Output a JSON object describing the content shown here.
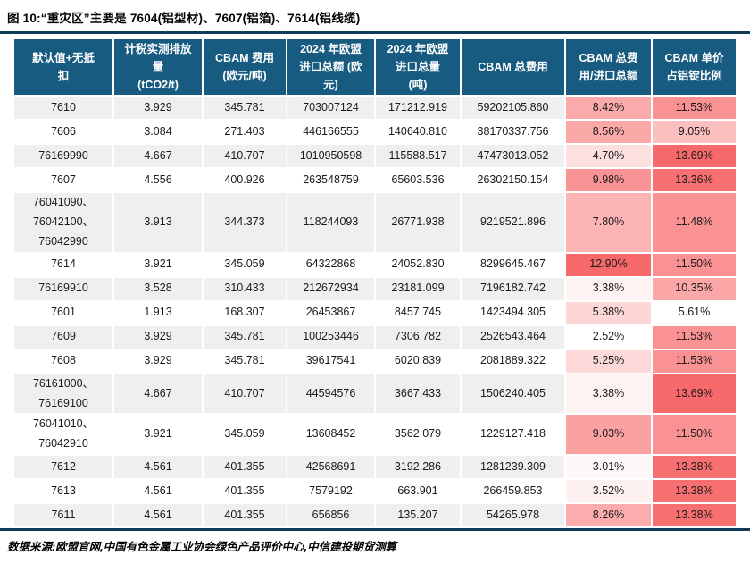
{
  "chart_data": {
    "type": "table",
    "title": "图 10:“重灾区”主要是 7604(铝型材)、7607(铝箔)、7614(铝线缆)",
    "columns": [
      "默认值+无抵\n扣",
      "计税实测排放\n量\n(tCO2/t)",
      "CBAM 费用\n(欧元/吨)",
      "2024 年欧盟\n进口总额 (欧\n元)",
      "2024 年欧盟\n进口总量\n(吨)",
      "CBAM 总费用",
      "CBAM 总费\n用/进口总额",
      "CBAM 单价\n占铝锭比例"
    ],
    "rows": [
      [
        "7610",
        "3.929",
        "345.781",
        "703007124",
        "171212.919",
        "59202105.860",
        "8.42%",
        "11.53%"
      ],
      [
        "7606",
        "3.084",
        "271.403",
        "446166555",
        "140640.810",
        "38170337.756",
        "8.56%",
        "9.05%"
      ],
      [
        "76169990",
        "4.667",
        "410.707",
        "1010950598",
        "115588.517",
        "47473013.052",
        "4.70%",
        "13.69%"
      ],
      [
        "7607",
        "4.556",
        "400.926",
        "263548759",
        "65603.536",
        "26302150.154",
        "9.98%",
        "13.36%"
      ],
      [
        "76041090、\n76042100、\n76042990",
        "3.913",
        "344.373",
        "118244093",
        "26771.938",
        "9219521.896",
        "7.80%",
        "11.48%"
      ],
      [
        "7614",
        "3.921",
        "345.059",
        "64322868",
        "24052.830",
        "8299645.467",
        "12.90%",
        "11.50%"
      ],
      [
        "76169910",
        "3.528",
        "310.433",
        "212672934",
        "23181.099",
        "7196182.742",
        "3.38%",
        "10.35%"
      ],
      [
        "7601",
        "1.913",
        "168.307",
        "26453867",
        "8457.745",
        "1423494.305",
        "5.38%",
        "5.61%"
      ],
      [
        "7609",
        "3.929",
        "345.781",
        "100253446",
        "7306.782",
        "2526543.464",
        "2.52%",
        "11.53%"
      ],
      [
        "7608",
        "3.929",
        "345.781",
        "39617541",
        "6020.839",
        "2081889.322",
        "5.25%",
        "11.53%"
      ],
      [
        "76161000、\n76169100",
        "4.667",
        "410.707",
        "44594576",
        "3667.433",
        "1506240.405",
        "3.38%",
        "13.69%"
      ],
      [
        "76041010、\n76042910",
        "3.921",
        "345.059",
        "13608452",
        "3562.079",
        "1229127.418",
        "9.03%",
        "11.50%"
      ],
      [
        "7612",
        "4.561",
        "401.355",
        "42568691",
        "3192.286",
        "1281239.309",
        "3.01%",
        "13.38%"
      ],
      [
        "7613",
        "4.561",
        "401.355",
        "7579192",
        "663.901",
        "266459.853",
        "3.52%",
        "13.38%"
      ],
      [
        "7611",
        "4.561",
        "401.355",
        "656856",
        "135.207",
        "54265.978",
        "8.26%",
        "13.38%"
      ]
    ],
    "heat_columns": [
      6,
      7
    ],
    "layout_hints": {
      "heat_low_color": "#FFFFFF",
      "heat_high_color": "#F8696B",
      "header_bg_color": "#175B80",
      "stripe_color": "#EFEFEF",
      "rule_color": "#0E3C59",
      "striped_rows": "odd"
    },
    "source": "数据来源:欧盟官网,中国有色金属工业协会绿色产品评价中心,中信建投期货测算"
  }
}
